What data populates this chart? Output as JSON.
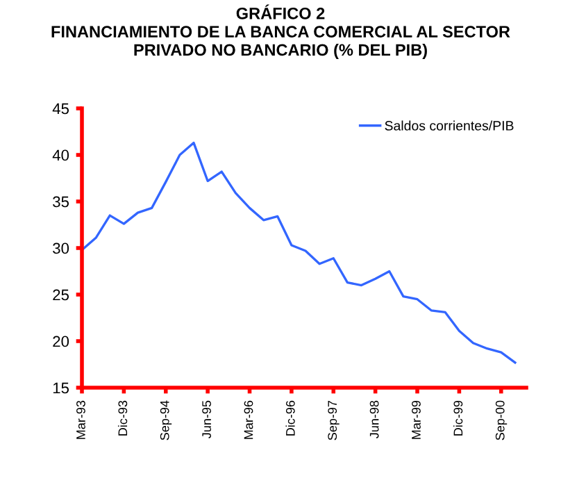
{
  "chart_data": {
    "type": "line",
    "title": "GRÁFICO 2\nFINANCIAMIENTO DE LA BANCA COMERCIAL AL SECTOR\nPRIVADO NO BANCARIO (% DEL PIB)",
    "categories": [
      "Mar-93",
      null,
      null,
      "Dic-93",
      null,
      null,
      "Sep-94",
      null,
      null,
      "Jun-95",
      null,
      null,
      "Mar-96",
      null,
      null,
      "Dic-96",
      null,
      null,
      "Sep-97",
      null,
      null,
      "Jun-98",
      null,
      null,
      "Mar-99",
      null,
      null,
      "Dic-99",
      null,
      null,
      "Sep-00",
      null
    ],
    "series": [
      {
        "name": "Saldos corrientes/PIB",
        "color": "#3366ff",
        "values": [
          29.8,
          31.1,
          33.5,
          32.6,
          33.8,
          34.3,
          37.1,
          40.0,
          41.3,
          37.2,
          38.2,
          35.9,
          34.3,
          33.0,
          33.4,
          30.3,
          29.7,
          28.3,
          28.9,
          26.3,
          26.0,
          26.7,
          27.5,
          24.8,
          24.5,
          23.3,
          23.1,
          21.1,
          19.8,
          19.2,
          18.8,
          17.7
        ]
      }
    ],
    "ylim": [
      15,
      45
    ],
    "yticks": [
      15,
      20,
      25,
      30,
      35,
      40,
      45
    ],
    "legend": "top right",
    "grid": false,
    "marker": "none",
    "line_style": "solid"
  }
}
